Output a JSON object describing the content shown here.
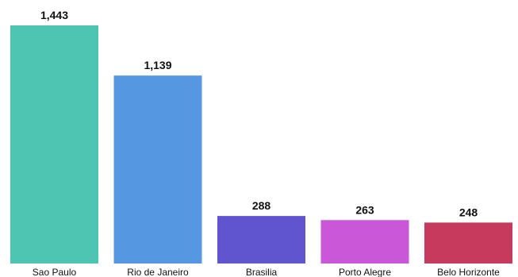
{
  "chart_data": {
    "type": "bar",
    "title": "",
    "xlabel": "",
    "ylabel": "",
    "grid": false,
    "legend": "none",
    "ylim": [
      0,
      1443
    ],
    "categories": [
      "Sao Paulo",
      "Rio de Janeiro",
      "Brasilia",
      "Porto Alegre",
      "Belo Horizonte"
    ],
    "values": [
      1443,
      1139,
      288,
      263,
      248
    ],
    "value_labels": [
      "1,443",
      "1,139",
      "288",
      "263",
      "248"
    ],
    "colors": [
      "#4ec4b3",
      "#5597e0",
      "#6155cf",
      "#c957d8",
      "#c63a5e"
    ]
  }
}
